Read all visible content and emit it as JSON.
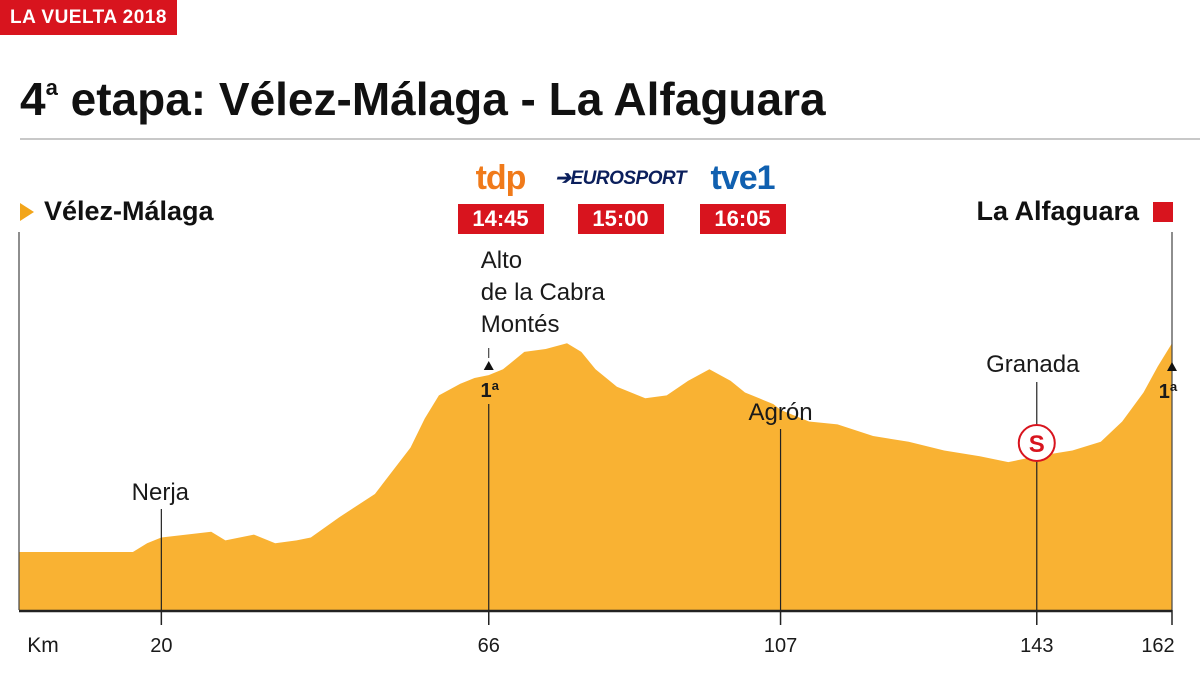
{
  "kicker": "LA VUELTA 2018",
  "title": {
    "prefix": "4",
    "ordinal": "a",
    "rest": " etapa: Vélez-Málaga - La Alfaguara"
  },
  "start": "Vélez-Málaga",
  "finish": "La Alfaguara",
  "broadcasts": [
    {
      "channel": "tdp",
      "logo": "tdp",
      "time": "14:45"
    },
    {
      "channel": "Eurosport",
      "logo": "➔EUROSPORT",
      "time": "15:00"
    },
    {
      "channel": "tve1",
      "logo": "tve1",
      "time": "16:05"
    }
  ],
  "colors": {
    "profile_fill": "#f9b233",
    "accent_red": "#d8141e",
    "start_arrow": "#f2a51a"
  },
  "chart_data": {
    "type": "area",
    "xlabel": "Km",
    "x_ticks": [
      20,
      66,
      107,
      143,
      162
    ],
    "xlim": [
      0,
      162
    ],
    "profile": {
      "x": [
        0,
        16,
        18,
        20,
        27,
        29,
        33,
        36,
        39,
        41,
        45,
        50,
        55,
        57,
        59,
        62,
        64,
        66,
        68,
        71,
        74,
        77,
        79,
        81,
        84,
        88,
        91,
        94,
        97,
        100,
        102,
        104,
        106,
        107,
        111,
        115,
        120,
        125,
        130,
        135,
        139,
        143,
        148,
        152,
        155,
        158,
        160,
        162
      ],
      "y": [
        0.1,
        0.1,
        0.115,
        0.125,
        0.135,
        0.12,
        0.13,
        0.115,
        0.12,
        0.125,
        0.16,
        0.2,
        0.28,
        0.33,
        0.37,
        0.39,
        0.4,
        0.405,
        0.415,
        0.445,
        0.45,
        0.46,
        0.445,
        0.415,
        0.385,
        0.365,
        0.37,
        0.395,
        0.415,
        0.395,
        0.375,
        0.365,
        0.355,
        0.345,
        0.325,
        0.32,
        0.3,
        0.29,
        0.275,
        0.265,
        0.255,
        0.265,
        0.275,
        0.29,
        0.325,
        0.375,
        0.42,
        0.46
      ]
    },
    "points": [
      {
        "km": 20,
        "name": "Nerja"
      },
      {
        "km": 66,
        "name": "Alto de la Cabra Montés",
        "lines": [
          "Alto",
          "de la Cabra",
          "Montés"
        ],
        "category": "1ª"
      },
      {
        "km": 107,
        "name": "Agrón"
      },
      {
        "km": 143,
        "name": "Granada",
        "sprint": "S"
      },
      {
        "km": 162,
        "category": "1ª"
      }
    ]
  }
}
